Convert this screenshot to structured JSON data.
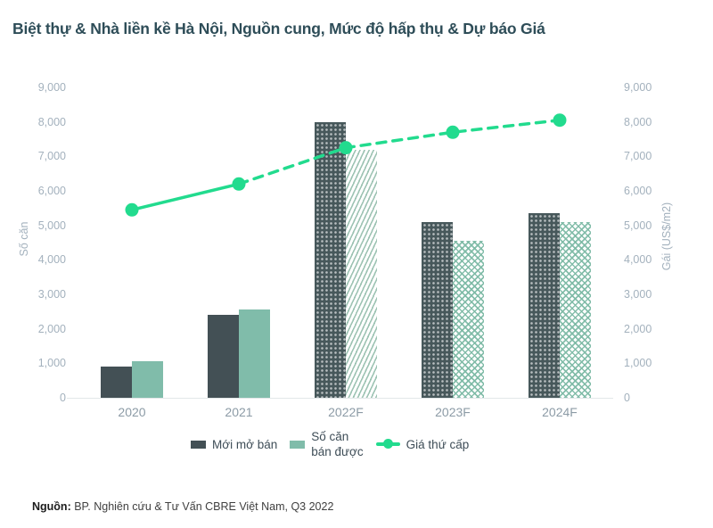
{
  "title": "Biệt thự & Nhà liền kề Hà Nội, Nguồn cung, Mức độ hấp thụ & Dự báo Giá",
  "source": {
    "label": "Nguồn:",
    "text": " BP. Nghiên cứu & Tư Vấn CBRE Việt Nam, Q3 2022"
  },
  "legend": {
    "items": [
      {
        "label": "Mới mở bán",
        "swatch": "dark-bar-swatch"
      },
      {
        "label": "Số căn\nbán được",
        "swatch": "green-bar-swatch"
      },
      {
        "label": "Giá thứ cấp",
        "swatch": "line-marker-swatch"
      }
    ]
  },
  "colors": {
    "dark_bar": "#435055",
    "green_bar": "#80bcaa",
    "line_green": "#22db8e",
    "title_text": "#2e4d58",
    "tick_text": "#a3b1bd"
  },
  "chart_data": {
    "type": "bar",
    "subtype": "grouped-bars-with-line",
    "title": "Biệt thự & Nhà liền kề Hà Nội, Nguồn cung, Mức độ hấp thụ & Dự báo Giá",
    "categories": [
      "2020",
      "2021",
      "2022F",
      "2023F",
      "2024F"
    ],
    "series": [
      {
        "name": "Mới mở bán",
        "type": "bar",
        "color": "#435055",
        "values": [
          900,
          2400,
          8000,
          5100,
          5350
        ]
      },
      {
        "name": "Số căn bán được",
        "type": "bar",
        "color": "#80bcaa",
        "values": [
          1050,
          2550,
          7200,
          4550,
          5100
        ]
      },
      {
        "name": "Giá thứ cấp",
        "type": "line",
        "color": "#22db8e",
        "values": [
          5450,
          6200,
          7250,
          7700,
          8050
        ],
        "dashed_from_index": 1
      }
    ],
    "left_axis": {
      "label": "Số căn",
      "min": 0,
      "max": 9000,
      "step": 1000
    },
    "right_axis": {
      "label": "Gái (US$/m2)",
      "min": 0,
      "max": 9000,
      "step": 1000
    },
    "forecast_from_index": 2,
    "grid": "off",
    "legend_position": "bottom"
  }
}
